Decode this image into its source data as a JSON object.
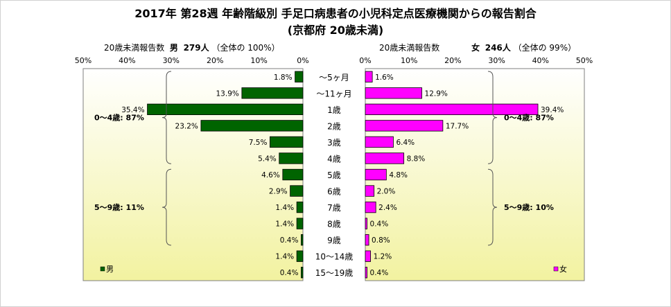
{
  "title": "2017年 第28週 年齢階級別 手足口病患者の小児科定点医療機関からの報告割合",
  "subtitle": "(京都府 20歳未満)",
  "left_header": {
    "prefix": "20歳未満報告数",
    "gender": "男",
    "count": "279人",
    "ratio": "（全体の 100%）"
  },
  "right_header": {
    "prefix": "20歳未満報告数",
    "gender": "女",
    "count": "246人",
    "ratio": "（全体の 99%）"
  },
  "colors": {
    "male": "#006400",
    "female": "#ff00ff",
    "plot_bg_top": "#ffffff",
    "plot_bg_bottom": "#f2f2a0",
    "bracket": "#555555"
  },
  "chart_data": [
    {
      "type": "bar",
      "orientation": "horizontal",
      "side": "left",
      "categories": [
        "～5ヶ月",
        "～11ヶ月",
        "1歳",
        "2歳",
        "3歳",
        "4歳",
        "5歳",
        "6歳",
        "7歳",
        "8歳",
        "9歳",
        "10～14歳",
        "15～19歳"
      ],
      "series": [
        {
          "name": "男",
          "values": [
            1.8,
            13.9,
            35.4,
            23.2,
            7.5,
            5.4,
            4.6,
            2.9,
            1.4,
            1.4,
            0.4,
            1.4,
            0.4
          ]
        }
      ],
      "xlim": [
        0,
        50
      ],
      "xticks": [
        "50%",
        "40%",
        "30%",
        "20%",
        "10%",
        "0%"
      ],
      "value_labels": [
        "1.8%",
        "13.9%",
        "35.4%",
        "23.2%",
        "7.5%",
        "5.4%",
        "4.6%",
        "2.9%",
        "1.4%",
        "1.4%",
        "0.4%",
        "1.4%",
        "0.4%"
      ],
      "legend": "bottom-left",
      "group_annotations": [
        {
          "label": "0～4歳: 87%",
          "from": 0,
          "to": 5
        },
        {
          "label": "5～9歳: 11%",
          "from": 6,
          "to": 10
        }
      ]
    },
    {
      "type": "bar",
      "orientation": "horizontal",
      "side": "right",
      "categories": [
        "～5ヶ月",
        "～11ヶ月",
        "1歳",
        "2歳",
        "3歳",
        "4歳",
        "5歳",
        "6歳",
        "7歳",
        "8歳",
        "9歳",
        "10～14歳",
        "15～19歳"
      ],
      "series": [
        {
          "name": "女",
          "values": [
            1.6,
            12.9,
            39.4,
            17.7,
            6.4,
            8.8,
            4.8,
            2.0,
            2.4,
            0.4,
            0.8,
            1.2,
            0.4
          ]
        }
      ],
      "xlim": [
        0,
        50
      ],
      "xticks": [
        "0%",
        "10%",
        "20%",
        "30%",
        "40%",
        "50%"
      ],
      "value_labels": [
        "1.6%",
        "12.9%",
        "39.4%",
        "17.7%",
        "6.4%",
        "8.8%",
        "4.8%",
        "2.0%",
        "2.4%",
        "0.4%",
        "0.8%",
        "1.2%",
        "0.4%"
      ],
      "legend": "bottom-right",
      "group_annotations": [
        {
          "label": "0～4歳: 87%",
          "from": 0,
          "to": 5
        },
        {
          "label": "5～9歳: 10%",
          "from": 6,
          "to": 10
        }
      ]
    }
  ]
}
